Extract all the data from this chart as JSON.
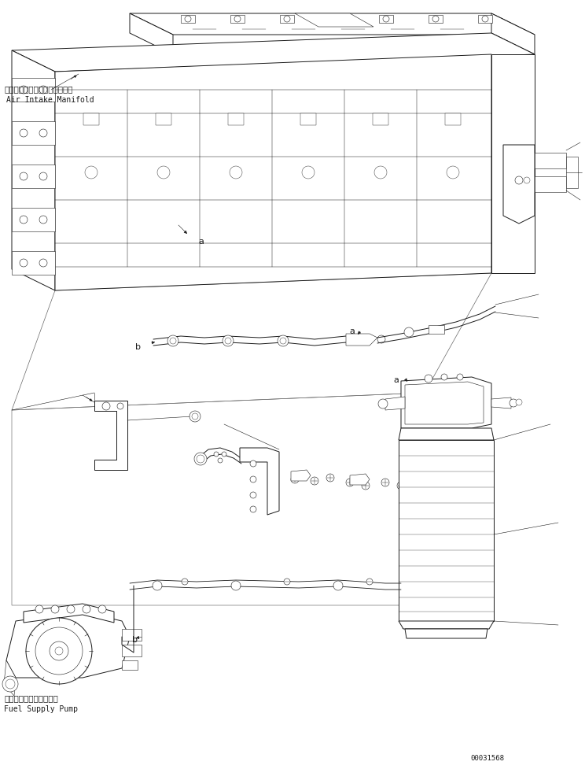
{
  "background_color": "#ffffff",
  "line_color": "#1a1a1a",
  "fig_width": 7.44,
  "fig_height": 9.78,
  "dpi": 100,
  "label_air_jp": "エアーインテークマニホールド",
  "label_air_en": "Air Intake Manifold",
  "label_pump_jp": "フェエルサプライボンプ",
  "label_pump_en": "Fuel Supply Pump",
  "label_code": "00031568",
  "thin": 0.4,
  "med": 0.7,
  "thick": 1.0
}
